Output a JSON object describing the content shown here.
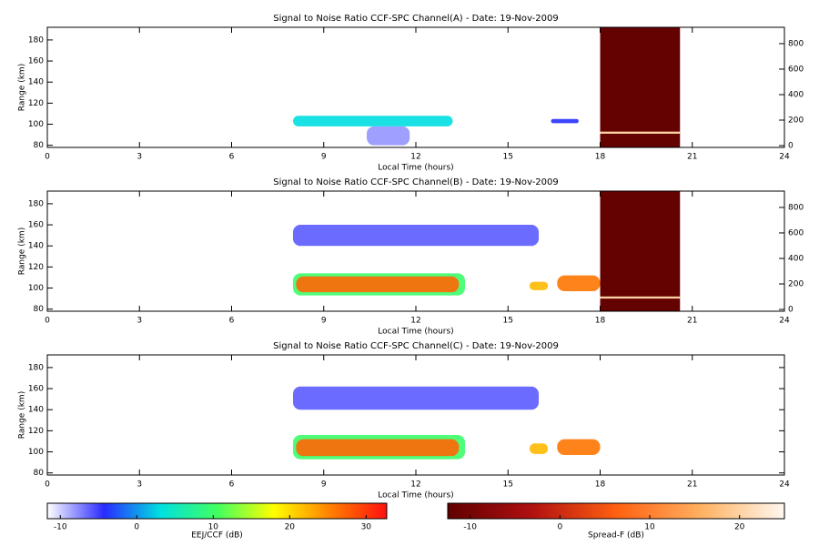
{
  "chart_data": [
    {
      "type": "heatmap",
      "title": "Signal to Noise Ratio CCF-SPC Channel(A) - Date: 19-Nov-2009",
      "xlabel": "Local Time (hours)",
      "ylabel": "Range (km)",
      "xlim": [
        0,
        24
      ],
      "xticks": [
        0,
        3,
        6,
        9,
        12,
        15,
        18,
        21,
        24
      ],
      "ylim": [
        78,
        192
      ],
      "yticks": [
        80,
        100,
        120,
        140,
        160,
        180
      ],
      "y2lim": [
        -14,
        928
      ],
      "y2ticks": [
        0,
        200,
        400,
        600,
        800
      ],
      "echoes": [
        {
          "x": [
            8,
            13.2
          ],
          "y": [
            98,
            108
          ],
          "value": 3
        },
        {
          "x": [
            10.4,
            11.8
          ],
          "y": [
            80,
            98
          ],
          "value": -8
        },
        {
          "x": [
            16.4,
            17.3
          ],
          "y": [
            101,
            105
          ],
          "value": -4
        }
      ],
      "spread_f": [
        {
          "x": [
            18,
            20.6
          ],
          "y": [
            78,
            192
          ],
          "value": -12
        },
        {
          "x": [
            18,
            20.6
          ],
          "y": [
            91,
            93
          ],
          "value": 20
        }
      ]
    },
    {
      "type": "heatmap",
      "title": "Signal to Noise Ratio CCF-SPC Channel(B) - Date: 19-Nov-2009",
      "xlabel": "Local Time (hours)",
      "ylabel": "Range (km)",
      "xlim": [
        0,
        24
      ],
      "xticks": [
        0,
        3,
        6,
        9,
        12,
        15,
        18,
        21,
        24
      ],
      "ylim": [
        78,
        192
      ],
      "yticks": [
        80,
        100,
        120,
        140,
        160,
        180
      ],
      "y2lim": [
        -14,
        928
      ],
      "y2ticks": [
        0,
        200,
        400,
        600,
        800
      ],
      "echoes": [
        {
          "x": [
            8,
            13.6
          ],
          "y": [
            93,
            114
          ],
          "value": 10
        },
        {
          "x": [
            8.1,
            13.4
          ],
          "y": [
            96,
            111
          ],
          "value": 27
        },
        {
          "x": [
            8,
            16
          ],
          "y": [
            140,
            160
          ],
          "value": -6
        },
        {
          "x": [
            15.7,
            16.3
          ],
          "y": [
            98,
            106
          ],
          "value": 22
        },
        {
          "x": [
            16.6,
            18
          ],
          "y": [
            97,
            112
          ],
          "value": 26
        }
      ],
      "spread_f": [
        {
          "x": [
            18,
            20.6
          ],
          "y": [
            78,
            192
          ],
          "value": -12
        },
        {
          "x": [
            18,
            20.6
          ],
          "y": [
            90,
            92
          ],
          "value": 20
        }
      ]
    },
    {
      "type": "heatmap",
      "title": "Signal to Noise Ratio CCF-SPC Channel(C) - Date: 19-Nov-2009",
      "xlabel": "Local Time (hours)",
      "ylabel": "Range (km)",
      "xlim": [
        0,
        24
      ],
      "xticks": [
        0,
        3,
        6,
        9,
        12,
        15,
        18,
        21,
        24
      ],
      "ylim": [
        78,
        192
      ],
      "yticks": [
        80,
        100,
        120,
        140,
        160,
        180
      ],
      "echoes": [
        {
          "x": [
            8,
            13.6
          ],
          "y": [
            93,
            116
          ],
          "value": 10
        },
        {
          "x": [
            8.1,
            13.4
          ],
          "y": [
            96,
            112
          ],
          "value": 27
        },
        {
          "x": [
            8,
            16
          ],
          "y": [
            140,
            162
          ],
          "value": -6
        },
        {
          "x": [
            15.7,
            16.3
          ],
          "y": [
            98,
            108
          ],
          "value": 22
        },
        {
          "x": [
            16.6,
            18
          ],
          "y": [
            97,
            112
          ],
          "value": 26
        }
      ],
      "spread_f": []
    },
    {
      "type": "colorbar",
      "label": "EEJ/CCF (dB)",
      "lim": [
        -11.7,
        32.7
      ],
      "ticks": [
        -10,
        0,
        10,
        20,
        30
      ],
      "colors": [
        "#ffffff",
        "#2a2aff",
        "#00e0e0",
        "#40ff60",
        "#ffff00",
        "#ff8000",
        "#ff1010"
      ]
    },
    {
      "type": "colorbar",
      "label": "Spread-F (dB)",
      "lim": [
        -12.5,
        25
      ],
      "ticks": [
        -10,
        0,
        10,
        20
      ],
      "colors": [
        "#600000",
        "#b01010",
        "#ff6010",
        "#ffb060",
        "#fff8f0"
      ]
    }
  ]
}
